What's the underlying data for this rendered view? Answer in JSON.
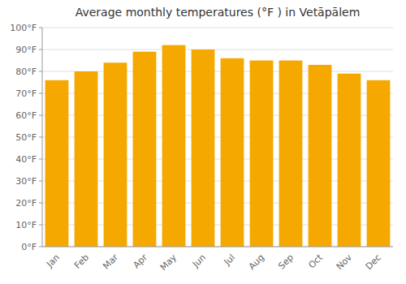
{
  "chart_data": {
    "type": "bar",
    "title": "Average monthly temperatures (°F ) in Vetāpālem",
    "categories": [
      "Jan",
      "Feb",
      "Mar",
      "Apr",
      "May",
      "Jun",
      "Jul",
      "Aug",
      "Sep",
      "Oct",
      "Nov",
      "Dec"
    ],
    "values": [
      76,
      80,
      84,
      89,
      92,
      90,
      86,
      85,
      85,
      83,
      79,
      76
    ],
    "color": "#F5A800",
    "ylim": [
      0,
      100
    ],
    "yticks": [
      {
        "value": 0,
        "label": "0°F"
      },
      {
        "value": 10,
        "label": "10°F"
      },
      {
        "value": 20,
        "label": "20°F"
      },
      {
        "value": 30,
        "label": "30°F"
      },
      {
        "value": 40,
        "label": "40°F"
      },
      {
        "value": 50,
        "label": "50°F"
      },
      {
        "value": 60,
        "label": "60°F"
      },
      {
        "value": 70,
        "label": "70°F"
      },
      {
        "value": 80,
        "label": "80°F"
      },
      {
        "value": 90,
        "label": "90°F"
      },
      {
        "value": 100,
        "label": "100°F"
      }
    ],
    "grid": true
  }
}
